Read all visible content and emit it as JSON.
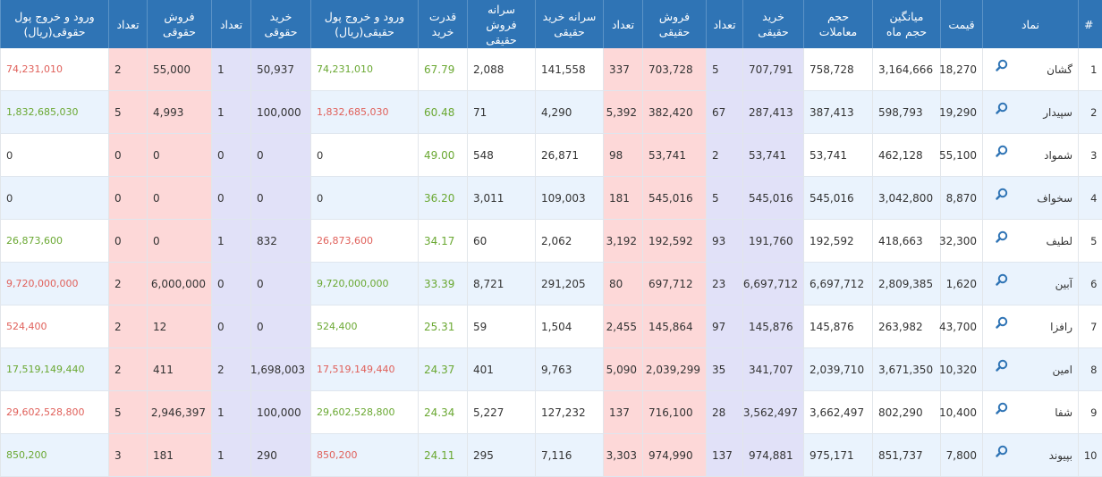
{
  "headers": [
    "#",
    "نماد",
    "قیمت",
    "میانگین حجم ماه",
    "حجم معاملات",
    "خرید حقیقی",
    "تعداد",
    "فروش حقیقی",
    "تعداد",
    "سرانه خرید حقیقی",
    "سرانه فروش حقیقی",
    "قدرت خرید",
    "ورود و خروج پول حقیقی(ریال)",
    "خرید حقوقی",
    "تعداد",
    "فروش حقوقی",
    "تعداد",
    "ورود و خروج پول حقوقی(ریال)"
  ],
  "colors": {
    "header": "#2f74b5",
    "positive": "#6aa832",
    "negative": "#e0605a",
    "buy_bg": "#e1e1f8",
    "sell_bg": "#fdd8d8"
  },
  "row_icon": "search-icon",
  "rows": [
    {
      "n": "1",
      "symbol": "گشان",
      "price": "18,270",
      "avg_vol": "3,164,666",
      "volume": "758,728",
      "buy_real": "707,791",
      "buy_real_count": "5",
      "sell_real": "703,728",
      "sell_real_count": "337",
      "buy_per_capita": "141,558",
      "sell_per_capita": "2,088",
      "power": "67.79",
      "flow_real": "74,231,010",
      "flow_real_sign": "green",
      "buy_legal": "50,937",
      "buy_legal_count": "1",
      "sell_legal": "55,000",
      "sell_legal_count": "2",
      "flow_legal": "74,231,010",
      "flow_legal_sign": "red"
    },
    {
      "n": "2",
      "symbol": "سپیدار",
      "price": "19,290",
      "avg_vol": "598,793",
      "volume": "387,413",
      "buy_real": "287,413",
      "buy_real_count": "67",
      "sell_real": "382,420",
      "sell_real_count": "5,392",
      "buy_per_capita": "4,290",
      "sell_per_capita": "71",
      "power": "60.48",
      "flow_real": "1,832,685,030",
      "flow_real_sign": "red",
      "buy_legal": "100,000",
      "buy_legal_count": "1",
      "sell_legal": "4,993",
      "sell_legal_count": "5",
      "flow_legal": "1,832,685,030",
      "flow_legal_sign": "green"
    },
    {
      "n": "3",
      "symbol": "شمواد",
      "price": "55,100",
      "avg_vol": "462,128",
      "volume": "53,741",
      "buy_real": "53,741",
      "buy_real_count": "2",
      "sell_real": "53,741",
      "sell_real_count": "98",
      "buy_per_capita": "26,871",
      "sell_per_capita": "548",
      "power": "49.00",
      "flow_real": "0",
      "flow_real_sign": "plain",
      "buy_legal": "0",
      "buy_legal_count": "0",
      "sell_legal": "0",
      "sell_legal_count": "0",
      "flow_legal": "0",
      "flow_legal_sign": "plain"
    },
    {
      "n": "4",
      "symbol": "سخواف",
      "price": "8,870",
      "avg_vol": "3,042,800",
      "volume": "545,016",
      "buy_real": "545,016",
      "buy_real_count": "5",
      "sell_real": "545,016",
      "sell_real_count": "181",
      "buy_per_capita": "109,003",
      "sell_per_capita": "3,011",
      "power": "36.20",
      "flow_real": "0",
      "flow_real_sign": "plain",
      "buy_legal": "0",
      "buy_legal_count": "0",
      "sell_legal": "0",
      "sell_legal_count": "0",
      "flow_legal": "0",
      "flow_legal_sign": "plain"
    },
    {
      "n": "5",
      "symbol": "لطیف",
      "price": "32,300",
      "avg_vol": "418,663",
      "volume": "192,592",
      "buy_real": "191,760",
      "buy_real_count": "93",
      "sell_real": "192,592",
      "sell_real_count": "3,192",
      "buy_per_capita": "2,062",
      "sell_per_capita": "60",
      "power": "34.17",
      "flow_real": "26,873,600",
      "flow_real_sign": "red",
      "buy_legal": "832",
      "buy_legal_count": "1",
      "sell_legal": "0",
      "sell_legal_count": "0",
      "flow_legal": "26,873,600",
      "flow_legal_sign": "green"
    },
    {
      "n": "6",
      "symbol": "آبین",
      "price": "1,620",
      "avg_vol": "2,809,385",
      "volume": "6,697,712",
      "buy_real": "6,697,712",
      "buy_real_count": "23",
      "sell_real": "697,712",
      "sell_real_count": "80",
      "buy_per_capita": "291,205",
      "sell_per_capita": "8,721",
      "power": "33.39",
      "flow_real": "9,720,000,000",
      "flow_real_sign": "green",
      "buy_legal": "0",
      "buy_legal_count": "0",
      "sell_legal": "6,000,000",
      "sell_legal_count": "2",
      "flow_legal": "9,720,000,000",
      "flow_legal_sign": "red"
    },
    {
      "n": "7",
      "symbol": "رافزا",
      "price": "43,700",
      "avg_vol": "263,982",
      "volume": "145,876",
      "buy_real": "145,876",
      "buy_real_count": "97",
      "sell_real": "145,864",
      "sell_real_count": "2,455",
      "buy_per_capita": "1,504",
      "sell_per_capita": "59",
      "power": "25.31",
      "flow_real": "524,400",
      "flow_real_sign": "green",
      "buy_legal": "0",
      "buy_legal_count": "0",
      "sell_legal": "12",
      "sell_legal_count": "2",
      "flow_legal": "524,400",
      "flow_legal_sign": "red"
    },
    {
      "n": "8",
      "symbol": "امین",
      "price": "10,320",
      "avg_vol": "3,671,350",
      "volume": "2,039,710",
      "buy_real": "341,707",
      "buy_real_count": "35",
      "sell_real": "2,039,299",
      "sell_real_count": "5,090",
      "buy_per_capita": "9,763",
      "sell_per_capita": "401",
      "power": "24.37",
      "flow_real": "17,519,149,440",
      "flow_real_sign": "red",
      "buy_legal": "1,698,003",
      "buy_legal_count": "2",
      "sell_legal": "411",
      "sell_legal_count": "2",
      "flow_legal": "17,519,149,440",
      "flow_legal_sign": "green"
    },
    {
      "n": "9",
      "symbol": "شفا",
      "price": "10,400",
      "avg_vol": "802,290",
      "volume": "3,662,497",
      "buy_real": "3,562,497",
      "buy_real_count": "28",
      "sell_real": "716,100",
      "sell_real_count": "137",
      "buy_per_capita": "127,232",
      "sell_per_capita": "5,227",
      "power": "24.34",
      "flow_real": "29,602,528,800",
      "flow_real_sign": "green",
      "buy_legal": "100,000",
      "buy_legal_count": "1",
      "sell_legal": "2,946,397",
      "sell_legal_count": "5",
      "flow_legal": "29,602,528,800",
      "flow_legal_sign": "red"
    },
    {
      "n": "10",
      "symbol": "بپیوند",
      "price": "7,800",
      "avg_vol": "851,737",
      "volume": "975,171",
      "buy_real": "974,881",
      "buy_real_count": "137",
      "sell_real": "974,990",
      "sell_real_count": "3,303",
      "buy_per_capita": "7,116",
      "sell_per_capita": "295",
      "power": "24.11",
      "flow_real": "850,200",
      "flow_real_sign": "red",
      "buy_legal": "290",
      "buy_legal_count": "1",
      "sell_legal": "181",
      "sell_legal_count": "3",
      "flow_legal": "850,200",
      "flow_legal_sign": "green"
    }
  ]
}
